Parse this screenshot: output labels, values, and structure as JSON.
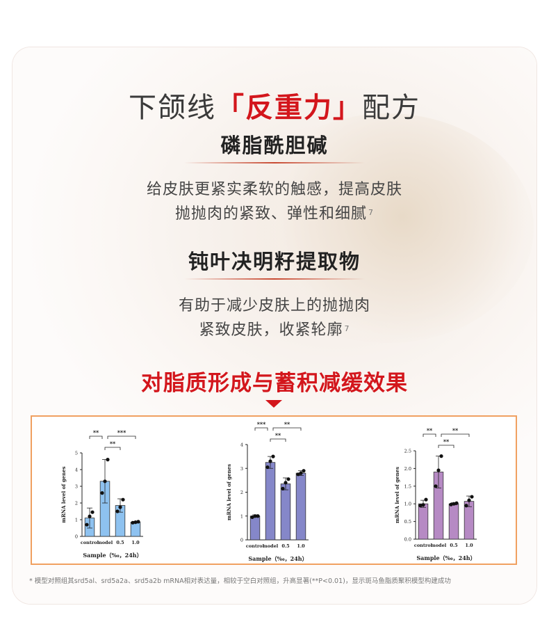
{
  "title": {
    "pre": "下颌线",
    "lbracket": "「",
    "highlight": "反重力",
    "rbracket": "」",
    "post": "配方"
  },
  "section1": {
    "heading": "磷脂酰胆碱",
    "line1": "给皮肤更紧实柔软的触感，提高皮肤",
    "line2": "抛抛肉的紧致、弹性和细腻",
    "note": "7"
  },
  "section2": {
    "heading": "钝叶决明籽提取物",
    "line1": "有助于减少皮肤上的抛抛肉",
    "line2": "紧致皮肤，收紧轮廓",
    "note": "7"
  },
  "effect_heading": "对脂质形成与蓄积减缓效果",
  "footnote": "* 模型对照组其srd5al、srd5a2a、srd5a2b mRNA相对表达量，相较于空白对照组，升高显著(**P<0.01)，显示斑马鱼脂质聚积模型构建成功",
  "colors": {
    "accent": "#d3161c",
    "bar_blue": "#8ec2f0",
    "bar_indigo": "#8587c9",
    "bar_purple": "#b68ac4"
  },
  "chart_data": [
    {
      "type": "bar",
      "categories": [
        "control",
        "model",
        "0.5",
        "1.0"
      ],
      "values": [
        1.1,
        3.3,
        1.85,
        0.85
      ],
      "errors": [
        0.6,
        1.3,
        0.4,
        0.05
      ],
      "points": [
        [
          0.7,
          1.2,
          1.45
        ],
        [
          2.6,
          3.3,
          4.6
        ],
        [
          1.5,
          1.75,
          2.2
        ],
        [
          0.82,
          0.85,
          0.88
        ]
      ],
      "ylim": [
        0,
        5
      ],
      "yticks": [
        0,
        1,
        2,
        3,
        4,
        5
      ],
      "xlabel": "Sample（‰，24h）",
      "ylabel": "mRNA level of genes",
      "color": "#8ec2f0",
      "significance": [
        {
          "from": 0,
          "to": 1,
          "label": "**",
          "level": 0
        },
        {
          "from": 1,
          "to": 3,
          "label": "***",
          "level": 0
        },
        {
          "from": 1,
          "to": 2,
          "label": "**",
          "level": 1
        }
      ]
    },
    {
      "type": "bar",
      "categories": [
        "control",
        "model",
        "0.5",
        "1.0"
      ],
      "values": [
        1.0,
        3.25,
        2.35,
        2.8
      ],
      "errors": [
        0.05,
        0.25,
        0.25,
        0.1
      ],
      "points": [
        [
          0.95,
          1.0,
          1.0
        ],
        [
          3.05,
          3.3,
          3.5
        ],
        [
          2.15,
          2.4,
          2.55
        ],
        [
          2.75,
          2.8,
          2.9
        ]
      ],
      "ylim": [
        0,
        4
      ],
      "yticks": [
        0,
        1,
        2,
        3,
        4
      ],
      "xlabel": "Sample（‰，24h）",
      "ylabel": "mRNA level of genes",
      "color": "#8587c9",
      "significance": [
        {
          "from": 0,
          "to": 1,
          "label": "***",
          "level": 0
        },
        {
          "from": 1,
          "to": 3,
          "label": "**",
          "level": 0
        },
        {
          "from": 1,
          "to": 2,
          "label": "**",
          "level": 1
        }
      ]
    },
    {
      "type": "bar",
      "categories": [
        "control",
        "model",
        "0.5",
        "1.0"
      ],
      "values": [
        1.0,
        1.9,
        1.0,
        1.07
      ],
      "errors": [
        0.1,
        0.45,
        0.03,
        0.15
      ],
      "points": [
        [
          0.95,
          0.97,
          1.12
        ],
        [
          1.5,
          1.95,
          2.35
        ],
        [
          0.98,
          1.0,
          1.02
        ],
        [
          0.95,
          1.1,
          1.2
        ]
      ],
      "ylim": [
        0,
        2.5
      ],
      "yticks": [
        0.0,
        0.5,
        1.0,
        1.5,
        2.0,
        2.5
      ],
      "xlabel": "Sample（‰，24h）",
      "ylabel": "mRNA level of genes",
      "color": "#b68ac4",
      "significance": [
        {
          "from": 0,
          "to": 1,
          "label": "**",
          "level": 0
        },
        {
          "from": 1,
          "to": 3,
          "label": "**",
          "level": 0
        },
        {
          "from": 1,
          "to": 2,
          "label": "**",
          "level": 1
        }
      ]
    }
  ]
}
